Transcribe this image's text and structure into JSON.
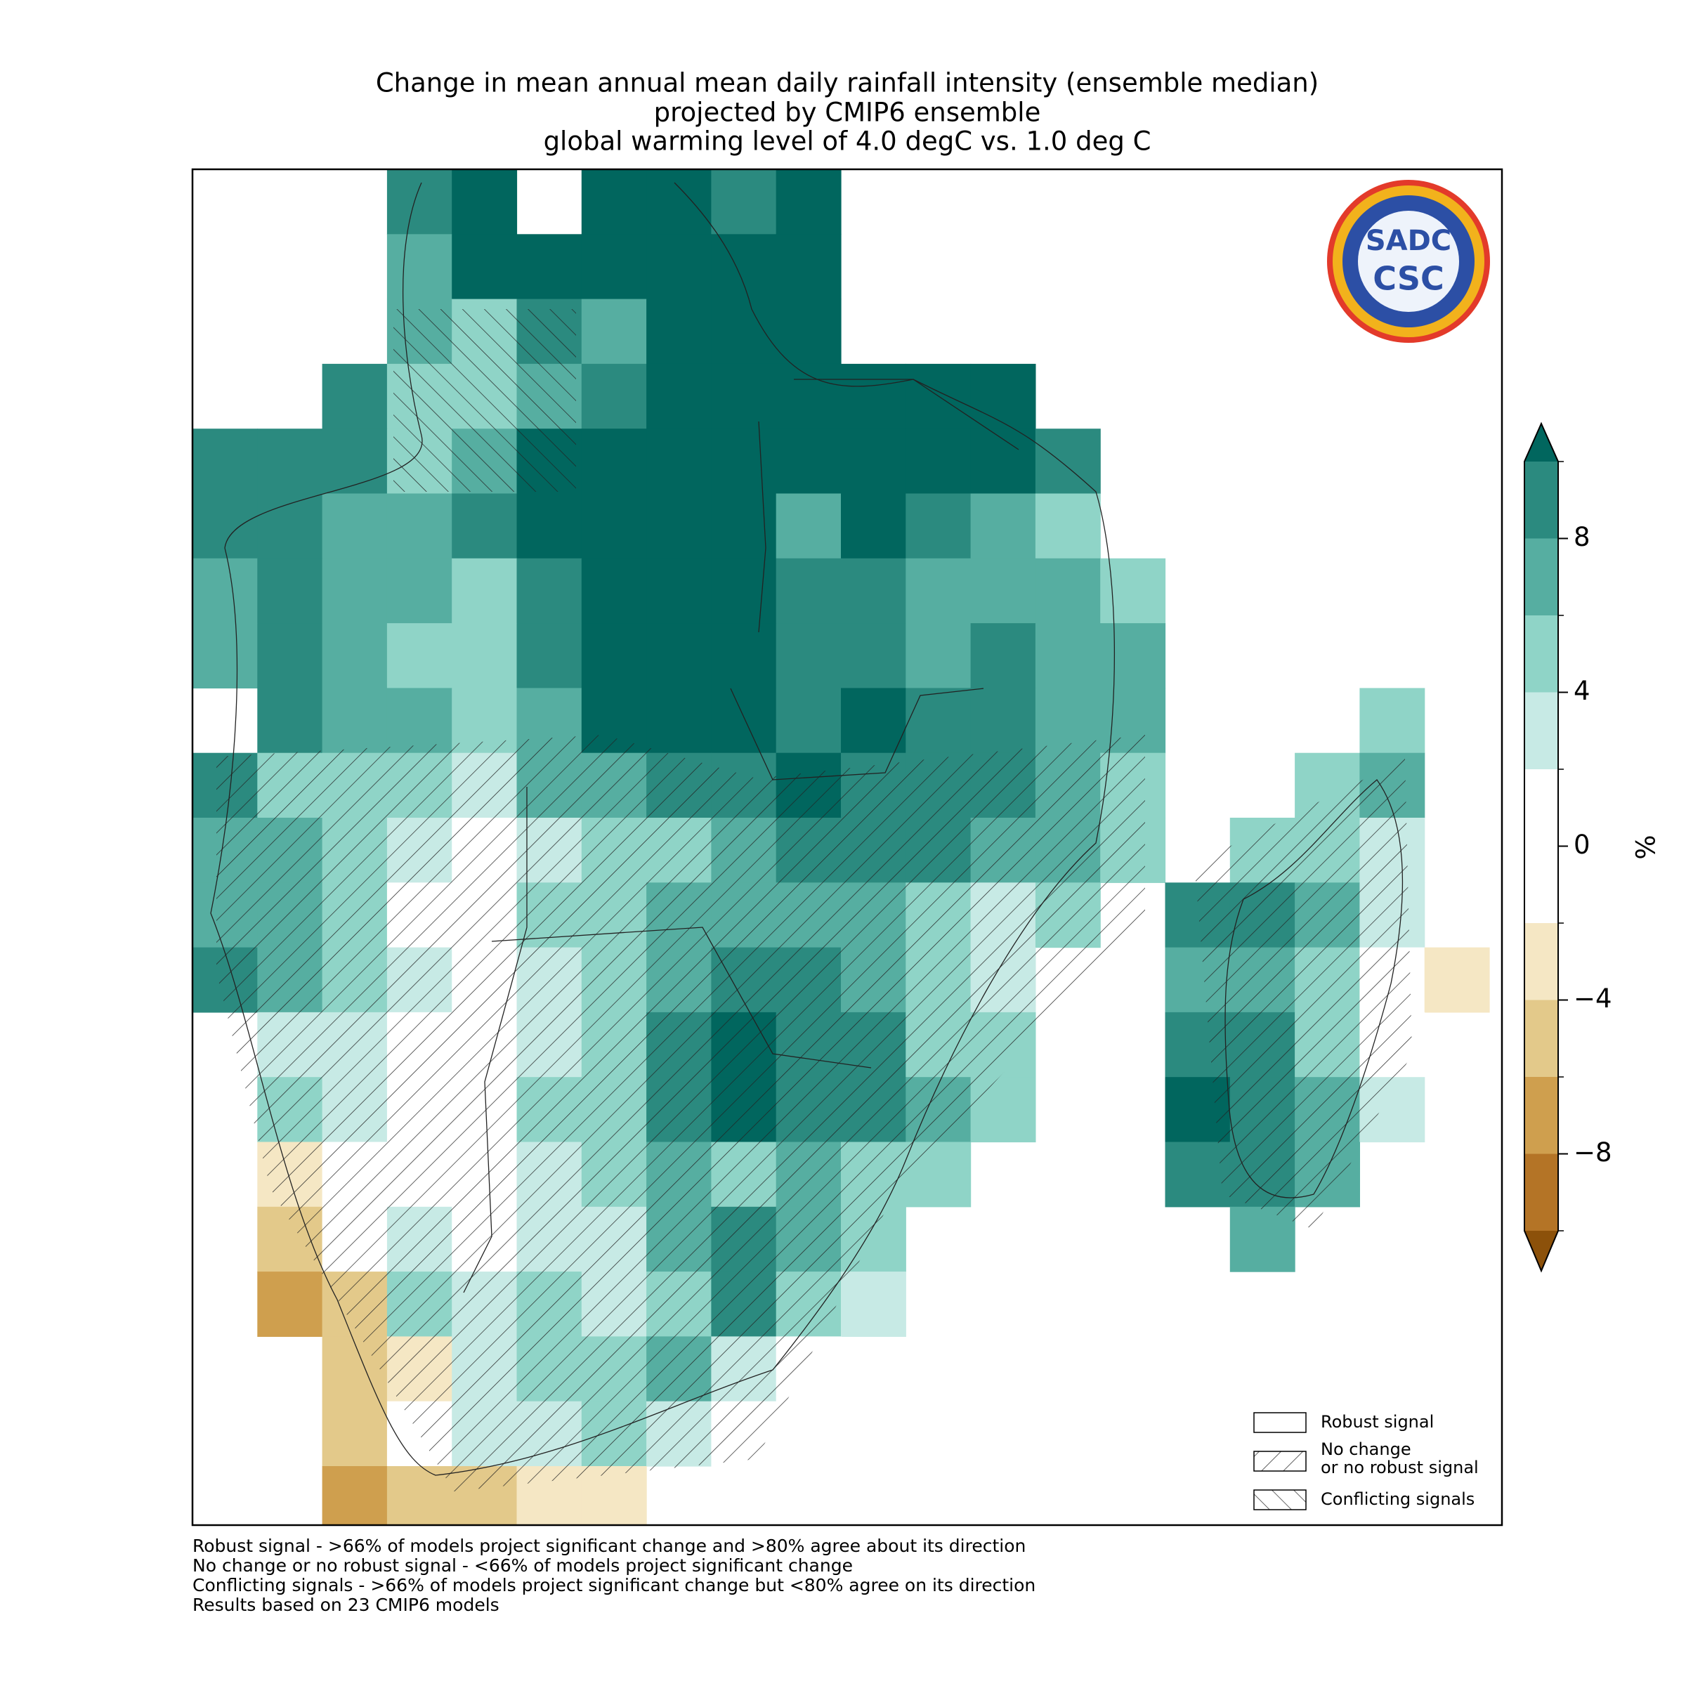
{
  "map": {
    "title": [
      "Change in mean annual mean daily rainfall intensity (ensemble median)",
      "projected by CMIP6 ensemble",
      "global warming level of 4.0 degC vs. 1.0 deg C"
    ],
    "colorbar": {
      "label": "%",
      "levels": [
        -10,
        -8,
        -6,
        -4,
        -2,
        2,
        4,
        6,
        8,
        10
      ],
      "colors": [
        "#8c510a",
        "#b47426",
        "#cf9f4e",
        "#e3c98a",
        "#f5e7c4",
        "#ffffff",
        "#c7eae5",
        "#8fd4c7",
        "#56aea1",
        "#2b8a7f",
        "#01665e"
      ],
      "ticks": [
        {
          "value": -8,
          "label": "−8"
        },
        {
          "value": -4,
          "label": "−4"
        },
        0,
        4,
        8
      ]
    },
    "legend": [
      "Robust signal",
      "No change",
      "or no robust signal",
      "Conflicting signals"
    ],
    "notes": [
      "Robust signal - >66% of models project significant change and >80% agree about its direction",
      "No change or no robust signal - <66% of models project significant change",
      "Conflicting signals - >66% of models project significant change but <80% agree on its direction",
      "Results based on 23 CMIP6 models"
    ],
    "logo": [
      "SADC",
      "CSC"
    ],
    "cells": [
      [
        null,
        null,
        null,
        9,
        12,
        null,
        12,
        12,
        9,
        12,
        null,
        null,
        null,
        null,
        null,
        null,
        null,
        null,
        null,
        null
      ],
      [
        null,
        null,
        null,
        7,
        12,
        12,
        12,
        12,
        12,
        12,
        null,
        null,
        null,
        null,
        null,
        null,
        null,
        null,
        null,
        null
      ],
      [
        null,
        null,
        null,
        7,
        5,
        9,
        7,
        12,
        12,
        12,
        null,
        null,
        null,
        null,
        null,
        null,
        null,
        null,
        null,
        null
      ],
      [
        null,
        null,
        9,
        5,
        5,
        7,
        9,
        12,
        12,
        12,
        12,
        12,
        12,
        null,
        null,
        null,
        null,
        null,
        null,
        null
      ],
      [
        9,
        9,
        9,
        5,
        7,
        12,
        12,
        12,
        12,
        12,
        12,
        12,
        12,
        9,
        null,
        null,
        null,
        null,
        null,
        null
      ],
      [
        9,
        9,
        7,
        7,
        9,
        12,
        12,
        12,
        12,
        7,
        12,
        9,
        7,
        5,
        null,
        null,
        null,
        null,
        null,
        null
      ],
      [
        7,
        9,
        7,
        7,
        5,
        9,
        12,
        12,
        12,
        9,
        9,
        7,
        7,
        7,
        5,
        null,
        null,
        null,
        null,
        null
      ],
      [
        7,
        9,
        7,
        5,
        5,
        9,
        12,
        12,
        12,
        9,
        9,
        7,
        9,
        7,
        7,
        null,
        null,
        null,
        null,
        null
      ],
      [
        null,
        9,
        7,
        7,
        5,
        7,
        12,
        12,
        12,
        9,
        12,
        9,
        9,
        7,
        7,
        null,
        null,
        null,
        5,
        null
      ],
      [
        9,
        5,
        5,
        5,
        3,
        7,
        7,
        9,
        9,
        12,
        9,
        9,
        9,
        7,
        5,
        null,
        null,
        5,
        7,
        null
      ],
      [
        7,
        7,
        5,
        3,
        0,
        3,
        5,
        5,
        7,
        9,
        9,
        9,
        7,
        7,
        5,
        null,
        5,
        5,
        3,
        null
      ],
      [
        7,
        7,
        5,
        0,
        0,
        5,
        5,
        7,
        7,
        7,
        7,
        5,
        3,
        5,
        null,
        9,
        9,
        7,
        3,
        null
      ],
      [
        9,
        7,
        5,
        3,
        0,
        3,
        5,
        7,
        9,
        9,
        7,
        5,
        3,
        null,
        null,
        7,
        7,
        5,
        0,
        -3
      ],
      [
        null,
        3,
        3,
        0,
        0,
        3,
        5,
        9,
        12,
        9,
        9,
        5,
        5,
        null,
        null,
        9,
        9,
        5,
        0,
        null
      ],
      [
        null,
        5,
        3,
        0,
        0,
        5,
        5,
        9,
        12,
        9,
        9,
        7,
        5,
        null,
        null,
        12,
        9,
        7,
        3,
        null
      ],
      [
        null,
        -3,
        0,
        0,
        0,
        3,
        5,
        7,
        5,
        7,
        5,
        5,
        null,
        null,
        null,
        9,
        9,
        7,
        null,
        null
      ],
      [
        null,
        -5,
        0,
        3,
        0,
        3,
        3,
        7,
        9,
        7,
        5,
        null,
        null,
        null,
        null,
        null,
        7,
        null,
        null,
        null
      ],
      [
        null,
        -7,
        -5,
        5,
        3,
        5,
        3,
        5,
        9,
        5,
        3,
        null,
        null,
        null,
        null,
        null,
        null,
        null,
        null,
        null
      ],
      [
        null,
        null,
        -5,
        -3,
        3,
        5,
        5,
        7,
        3,
        0,
        null,
        null,
        null,
        null,
        null,
        null,
        null,
        null,
        null,
        null
      ],
      [
        null,
        null,
        -5,
        0,
        3,
        3,
        5,
        3,
        0,
        null,
        null,
        null,
        null,
        null,
        null,
        null,
        null,
        null,
        null,
        null
      ],
      [
        null,
        null,
        -7,
        -5,
        -5,
        -3,
        -3,
        null,
        null,
        null,
        null,
        null,
        null,
        null,
        null,
        null,
        null,
        null,
        null,
        null
      ]
    ]
  }
}
